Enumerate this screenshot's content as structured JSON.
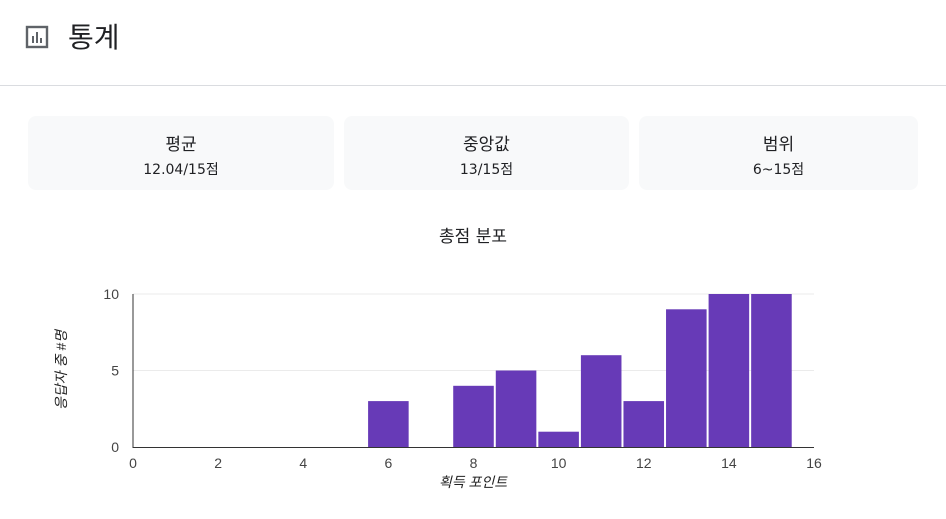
{
  "header": {
    "title": "통계",
    "icon": "bar-chart-icon"
  },
  "stats": [
    {
      "label": "평균",
      "value": "12.04/15점"
    },
    {
      "label": "중앙값",
      "value": "13/15점"
    },
    {
      "label": "범위",
      "value": "6~15점"
    }
  ],
  "chart_data": {
    "type": "bar",
    "title": "총점 분포",
    "xlabel": "획득 포인트",
    "ylabel": "응답자 중 #명",
    "x": [
      6,
      8,
      9,
      10,
      11,
      12,
      13,
      14,
      15
    ],
    "values": [
      3,
      4,
      5,
      1,
      6,
      3,
      9,
      10,
      10
    ],
    "xlim": [
      0,
      16
    ],
    "ylim": [
      0,
      10
    ],
    "xticks": [
      "0",
      "2",
      "4",
      "6",
      "8",
      "10",
      "12",
      "14",
      "16"
    ],
    "yticks": [
      "0",
      "5",
      "10"
    ],
    "color": "#673ab7",
    "grid": true
  }
}
